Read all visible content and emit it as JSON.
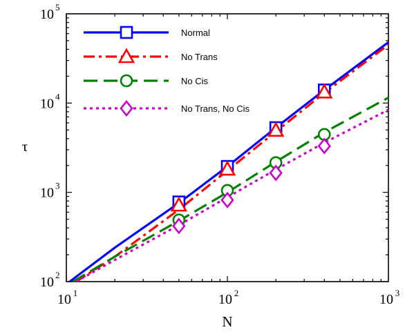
{
  "chart_data": {
    "type": "line",
    "xscale": "log",
    "yscale": "log",
    "xlim": [
      10,
      1000
    ],
    "ylim": [
      100,
      100000
    ],
    "xlabel": "N",
    "ylabel": "τ",
    "x_ticks": [
      10,
      100,
      1000
    ],
    "y_ticks": [
      100,
      1000,
      10000,
      100000
    ],
    "x_tick_labels": [
      {
        "base": "10",
        "exp": "1"
      },
      {
        "base": "10",
        "exp": "2"
      },
      {
        "base": "10",
        "exp": "3"
      }
    ],
    "y_tick_labels": [
      {
        "base": "10",
        "exp": "2"
      },
      {
        "base": "10",
        "exp": "3"
      },
      {
        "base": "10",
        "exp": "4"
      },
      {
        "base": "10",
        "exp": "5"
      }
    ],
    "legend_position": "top-left",
    "grid": false,
    "series": [
      {
        "name": "Normal",
        "color": "#0000ff",
        "dash": "solid",
        "marker": "square",
        "line": [
          [
            10.5,
            100
          ],
          [
            20,
            240
          ],
          [
            50,
            760
          ],
          [
            100,
            1950
          ],
          [
            200,
            5300
          ],
          [
            400,
            14000
          ],
          [
            1000,
            48000
          ]
        ],
        "points": [
          [
            50,
            780
          ],
          [
            100,
            1950
          ],
          [
            200,
            5300
          ],
          [
            400,
            14000
          ]
        ]
      },
      {
        "name": "No Trans",
        "color": "#ff0000",
        "dash": "dash-dot",
        "marker": "triangle",
        "line": [
          [
            11.5,
            100
          ],
          [
            20,
            190
          ],
          [
            50,
            640
          ],
          [
            100,
            1750
          ],
          [
            200,
            4800
          ],
          [
            400,
            13000
          ],
          [
            1000,
            45000
          ]
        ],
        "points": [
          [
            50,
            720
          ],
          [
            100,
            1820
          ],
          [
            200,
            4950
          ],
          [
            400,
            13300
          ]
        ]
      },
      {
        "name": "No Cis",
        "color": "#008000",
        "dash": "long-dash",
        "marker": "circle",
        "line": [
          [
            11,
            100
          ],
          [
            20,
            190
          ],
          [
            50,
            480
          ],
          [
            100,
            1000
          ],
          [
            200,
            2200
          ],
          [
            400,
            4700
          ],
          [
            1000,
            11500
          ]
        ],
        "points": [
          [
            50,
            490
          ],
          [
            100,
            1050
          ],
          [
            200,
            2150
          ],
          [
            400,
            4450
          ]
        ]
      },
      {
        "name": "No Trans, No Cis",
        "color": "#cc00cc",
        "dash": "dotted",
        "marker": "diamond",
        "line": [
          [
            11.5,
            100
          ],
          [
            20,
            175
          ],
          [
            50,
            430
          ],
          [
            100,
            880
          ],
          [
            200,
            1800
          ],
          [
            400,
            3600
          ],
          [
            1000,
            8400
          ]
        ],
        "points": [
          [
            50,
            420
          ],
          [
            100,
            820
          ],
          [
            200,
            1650
          ],
          [
            400,
            3300
          ]
        ]
      }
    ]
  }
}
